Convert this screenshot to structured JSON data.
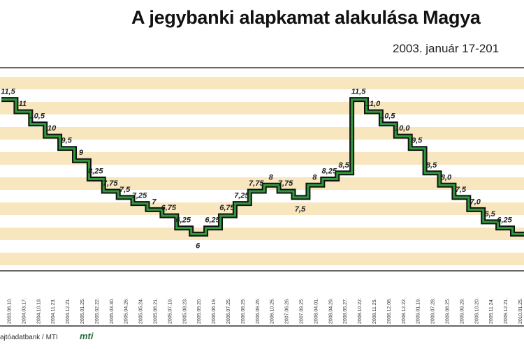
{
  "header": {
    "title": "A jegybanki alapkamat alakulása Magya",
    "subtitle": "2003. január 17-201"
  },
  "footer": {
    "source": "ajtóadatbank / MTI",
    "logo": "mti"
  },
  "colors": {
    "band": "#f8e6bf",
    "line_outer": "#111111",
    "line_inner": "#2f9a3a",
    "frame": "#333333"
  },
  "chart_data": {
    "type": "line",
    "step": true,
    "title": "A jegybanki alapkamat alakulása Magya",
    "subtitle": "2003. január 17-201",
    "xlabel": "",
    "ylabel": "",
    "ylim": [
      4.5,
      12.8
    ],
    "grid": "horizontal bands",
    "categories": [
      "2003.06.10.",
      "2004.03.17.",
      "2004.10.19.",
      "2004.11.23.",
      "2004.12.21.",
      "2005.01.25.",
      "2005.02.22.",
      "2005.03.30.",
      "2005.04.26.",
      "2005.05.24.",
      "2005.06.21.",
      "2005.07.19.",
      "2005.08.23.",
      "2005.09.20.",
      "2006.06.19.",
      "2006.07.25.",
      "2006.08.29.",
      "2006.09.26.",
      "2006.10.25.",
      "2007.06.26.",
      "2007.09.25.",
      "2008.04.01.",
      "2008.04.29.",
      "2008.05.27.",
      "2008.10.22.",
      "2008.11.25.",
      "2008.12.08.",
      "2008.12.22.",
      "2009.01.19.",
      "2009.07.28.",
      "2009.08.25.",
      "2009.09.29.",
      "2009.10.20.",
      "2009.11.24.",
      "2009.12.21.",
      "2010.01.25."
    ],
    "values": [
      11.5,
      11,
      10.5,
      10,
      9.5,
      9,
      8.25,
      7.75,
      7.5,
      7.25,
      7,
      6.75,
      6.25,
      6,
      6.25,
      6.75,
      7.25,
      7.75,
      8,
      7.75,
      7.5,
      8,
      8.25,
      8.5,
      11.5,
      11.0,
      10.5,
      10.0,
      9.5,
      8.5,
      8.0,
      7.5,
      7.0,
      6.5,
      6.25,
      6.0
    ],
    "labels": [
      "11,5",
      "11",
      "10,5",
      "10",
      "9,5",
      "9",
      "8,25",
      "7,75",
      "7,5",
      "7,25",
      "7",
      "6,75",
      "6,25",
      "6",
      "6,25",
      "6,75",
      "7,25",
      "7,75",
      "8",
      "7,75",
      "7,5",
      "8",
      "8,25",
      "8,5",
      "11,5",
      "11,0",
      "10,5",
      "10,0",
      "9,5",
      "8,5",
      "8,0",
      "7,5",
      "7,0",
      "6,5",
      "6,25",
      ""
    ]
  }
}
